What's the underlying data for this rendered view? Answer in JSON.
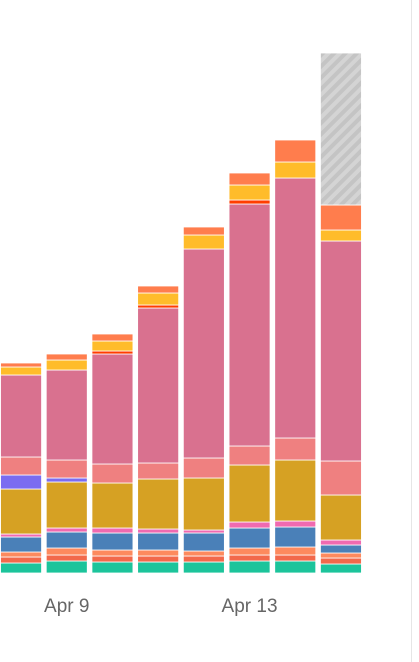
{
  "chart_data": {
    "type": "stacked-bar",
    "categories": [
      null,
      "Apr 9",
      null,
      null,
      null,
      "Apr 13",
      null,
      null
    ],
    "ylim": [
      0,
      520
    ],
    "series": [
      {
        "color": "#1cc49b",
        "values": [
          10,
          12,
          11,
          11,
          11,
          12,
          12,
          9
        ]
      },
      {
        "color": "#f2694b",
        "values": [
          6,
          6,
          6,
          6,
          6,
          6,
          6,
          6
        ]
      },
      {
        "color": "#fd8a5e",
        "values": [
          5,
          7,
          6,
          6,
          5,
          7,
          8,
          5
        ]
      },
      {
        "color": "#4a80b8",
        "values": [
          15,
          16,
          17,
          17,
          18,
          20,
          20,
          8
        ]
      },
      {
        "color": "#f06ab0",
        "values": [
          3,
          4,
          5,
          4,
          3,
          6,
          6,
          5
        ]
      },
      {
        "color": "#d6a123",
        "values": [
          45,
          46,
          45,
          50,
          52,
          57,
          61,
          45
        ]
      },
      {
        "color": "#7b6cf0",
        "values": [
          14,
          4,
          0,
          0,
          0,
          0,
          0,
          0
        ]
      },
      {
        "color": "#ef8080",
        "values": [
          18,
          18,
          19,
          16,
          20,
          19,
          22,
          34
        ]
      },
      {
        "color": "#d9718f",
        "values": [
          82,
          90,
          110,
          155,
          209,
          242,
          260,
          220
        ]
      },
      {
        "color": "#ff3d00",
        "values": [
          0,
          0,
          3,
          3,
          0,
          4,
          0,
          0
        ]
      },
      {
        "color": "#ffbc2a",
        "values": [
          8,
          10,
          10,
          12,
          14,
          15,
          16,
          11
        ]
      },
      {
        "color": "#ff7d4d",
        "values": [
          4,
          6,
          7,
          7,
          8,
          12,
          22,
          25
        ]
      },
      {
        "color": "#cccccc",
        "pattern": "hatch",
        "values": [
          0,
          0,
          0,
          0,
          0,
          0,
          0,
          152
        ]
      }
    ]
  }
}
